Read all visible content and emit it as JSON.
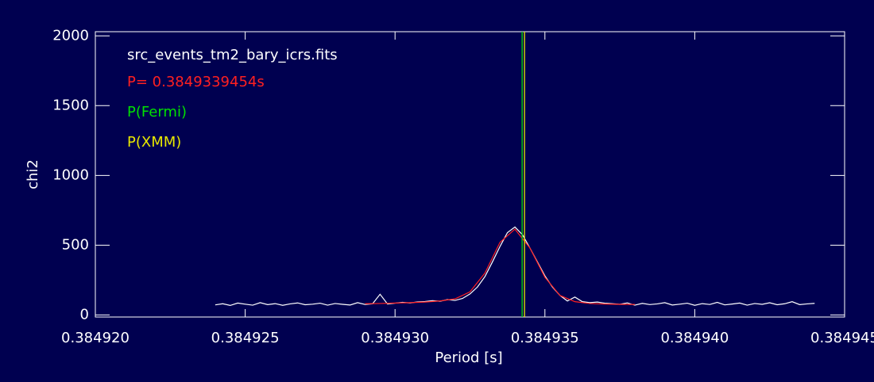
{
  "chart_data": {
    "type": "line",
    "xlabel": "Period [s]",
    "ylabel": "chi2",
    "xlim": [
      0.38492,
      0.384945
    ],
    "ylim": [
      -15,
      2030
    ],
    "xticks": [
      {
        "value": 0.38492,
        "label": "0.384920"
      },
      {
        "value": 0.384925,
        "label": "0.384925"
      },
      {
        "value": 0.38493,
        "label": "0.384930"
      },
      {
        "value": 0.384935,
        "label": "0.384935"
      },
      {
        "value": 0.38494,
        "label": "0.384940"
      },
      {
        "value": 0.384945,
        "label": "0.384945"
      }
    ],
    "yticks": [
      0,
      500,
      1000,
      1500,
      2000
    ],
    "series": [
      {
        "name": "src_events_tm2_bary_icrs.fits",
        "color": "#ffffff",
        "x": [
          0.384924,
          0.38492425,
          0.3849245,
          0.38492475,
          0.384925,
          0.38492525,
          0.3849255,
          0.38492575,
          0.384926,
          0.38492625,
          0.3849265,
          0.38492675,
          0.384927,
          0.38492725,
          0.3849275,
          0.38492775,
          0.384928,
          0.38492825,
          0.3849285,
          0.38492875,
          0.384929,
          0.38492925,
          0.3849295,
          0.38492975,
          0.38493,
          0.38493025,
          0.3849305,
          0.38493075,
          0.384931,
          0.38493125,
          0.3849315,
          0.38493175,
          0.384932,
          0.38493225,
          0.3849325,
          0.38493275,
          0.384933,
          0.38493325,
          0.3849335,
          0.38493375,
          0.384934,
          0.38493425,
          0.3849345,
          0.38493475,
          0.384935,
          0.38493525,
          0.3849355,
          0.38493575,
          0.384936,
          0.38493625,
          0.3849365,
          0.38493675,
          0.384937,
          0.38493725,
          0.3849375,
          0.38493775,
          0.384938,
          0.38493825,
          0.3849385,
          0.38493875,
          0.384939,
          0.38493925,
          0.3849395,
          0.38493975,
          0.38494,
          0.38494025,
          0.3849405,
          0.38494075,
          0.384941,
          0.38494125,
          0.3849415,
          0.38494175,
          0.384942,
          0.38494225,
          0.3849425,
          0.38494275,
          0.384943,
          0.38494325,
          0.3849435,
          0.38494375,
          0.384944
        ],
        "values": [
          72,
          80,
          68,
          85,
          77,
          70,
          88,
          74,
          81,
          69,
          79,
          86,
          73,
          77,
          84,
          70,
          82,
          76,
          71,
          88,
          75,
          80,
          148,
          78,
          84,
          90,
          86,
          93,
          96,
          102,
          98,
          110,
          104,
          118,
          150,
          200,
          275,
          380,
          490,
          590,
          630,
          575,
          480,
          380,
          280,
          200,
          140,
          100,
          128,
          95,
          88,
          92,
          84,
          80,
          76,
          86,
          70,
          83,
          74,
          79,
          88,
          71,
          77,
          84,
          69,
          81,
          75,
          90,
          72,
          78,
          85,
          70,
          82,
          76,
          87,
          73,
          80,
          95,
          74,
          79,
          83
        ]
      },
      {
        "name": "P= 0.3849339454s",
        "color": "#ff2020",
        "x": [
          0.384929,
          0.3849295,
          0.38493,
          0.3849305,
          0.384931,
          0.3849315,
          0.384932,
          0.3849325,
          0.384933,
          0.3849335,
          0.384934,
          0.3849345,
          0.384935,
          0.3849355,
          0.384936,
          0.3849365,
          0.384937,
          0.3849375,
          0.384938
        ],
        "values": [
          80,
          82,
          85,
          88,
          92,
          100,
          115,
          165,
          300,
          520,
          615,
          480,
          270,
          140,
          95,
          82,
          78,
          76,
          75
        ]
      }
    ],
    "vlines": [
      {
        "name": "P(Fermi)",
        "color": "#00e000",
        "x": 0.38493424
      },
      {
        "name": "P(XMM)",
        "color": "#e8e800",
        "x": 0.38493432
      }
    ]
  }
}
